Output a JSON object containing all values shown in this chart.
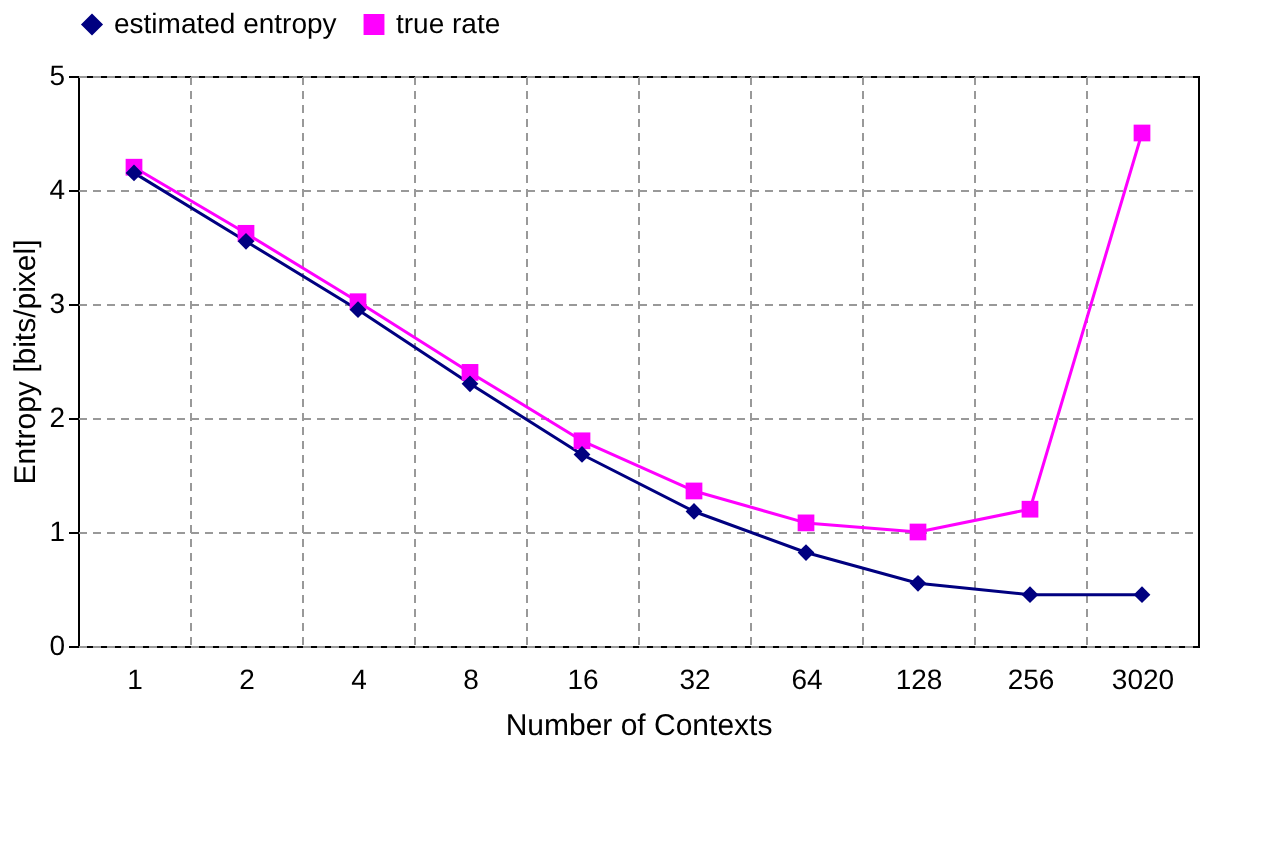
{
  "chart_data": {
    "type": "line",
    "xlabel": "Number of Contexts",
    "ylabel": "Entropy [bits/pixel]",
    "categories": [
      "1",
      "2",
      "4",
      "8",
      "16",
      "32",
      "64",
      "128",
      "256",
      "3020"
    ],
    "series": [
      {
        "name": "estimated entropy",
        "color": "#000080",
        "marker": "diamond",
        "values": [
          4.15,
          3.55,
          2.95,
          2.3,
          1.68,
          1.18,
          0.82,
          0.55,
          0.45,
          0.45
        ]
      },
      {
        "name": "true rate",
        "color": "#ff00ff",
        "marker": "square",
        "values": [
          4.2,
          3.62,
          3.02,
          2.4,
          1.8,
          1.36,
          1.08,
          1.0,
          1.2,
          4.5
        ]
      }
    ],
    "ylim": [
      0,
      5
    ],
    "yticks": [
      0,
      1,
      2,
      3,
      4,
      5
    ],
    "grid": true,
    "legend": "top",
    "line_style": "solid"
  }
}
